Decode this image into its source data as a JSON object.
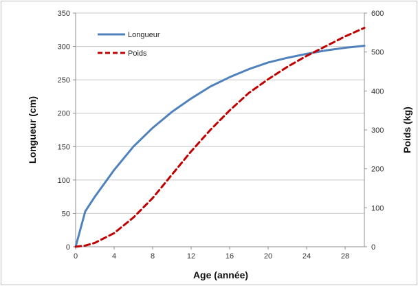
{
  "chart_data": {
    "type": "line",
    "title": "",
    "xlabel": "Age (année)",
    "ylabel_left": "Longueur (cm)",
    "ylabel_right": "Poids (kg)",
    "xlim": [
      0,
      30
    ],
    "ylim_left": [
      0,
      350
    ],
    "ylim_right": [
      0,
      600
    ],
    "x_ticks": [
      0,
      4,
      8,
      12,
      16,
      20,
      24,
      28
    ],
    "y_left_ticks": [
      0,
      50,
      100,
      150,
      200,
      250,
      300,
      350
    ],
    "y_right_ticks": [
      0,
      100,
      200,
      300,
      400,
      500,
      600
    ],
    "grid": "horizontal",
    "legend_position": "top-left",
    "series": [
      {
        "name": "Longueur",
        "axis": "left",
        "color": "#4f81bd",
        "style": "solid",
        "x": [
          0,
          1,
          2,
          4,
          6,
          8,
          10,
          12,
          14,
          16,
          18,
          20,
          22,
          24,
          26,
          28,
          30
        ],
        "y": [
          0,
          53,
          75,
          115,
          150,
          178,
          202,
          222,
          240,
          254,
          266,
          276,
          283,
          289,
          294,
          298,
          301
        ]
      },
      {
        "name": "Poids",
        "axis": "right",
        "color": "#c00000",
        "style": "dashed",
        "x": [
          0,
          1,
          2,
          4,
          6,
          8,
          10,
          12,
          14,
          16,
          18,
          20,
          22,
          24,
          26,
          28,
          30
        ],
        "y": [
          0,
          3,
          10,
          35,
          75,
          125,
          185,
          245,
          300,
          350,
          395,
          430,
          462,
          490,
          515,
          540,
          562
        ]
      }
    ]
  }
}
